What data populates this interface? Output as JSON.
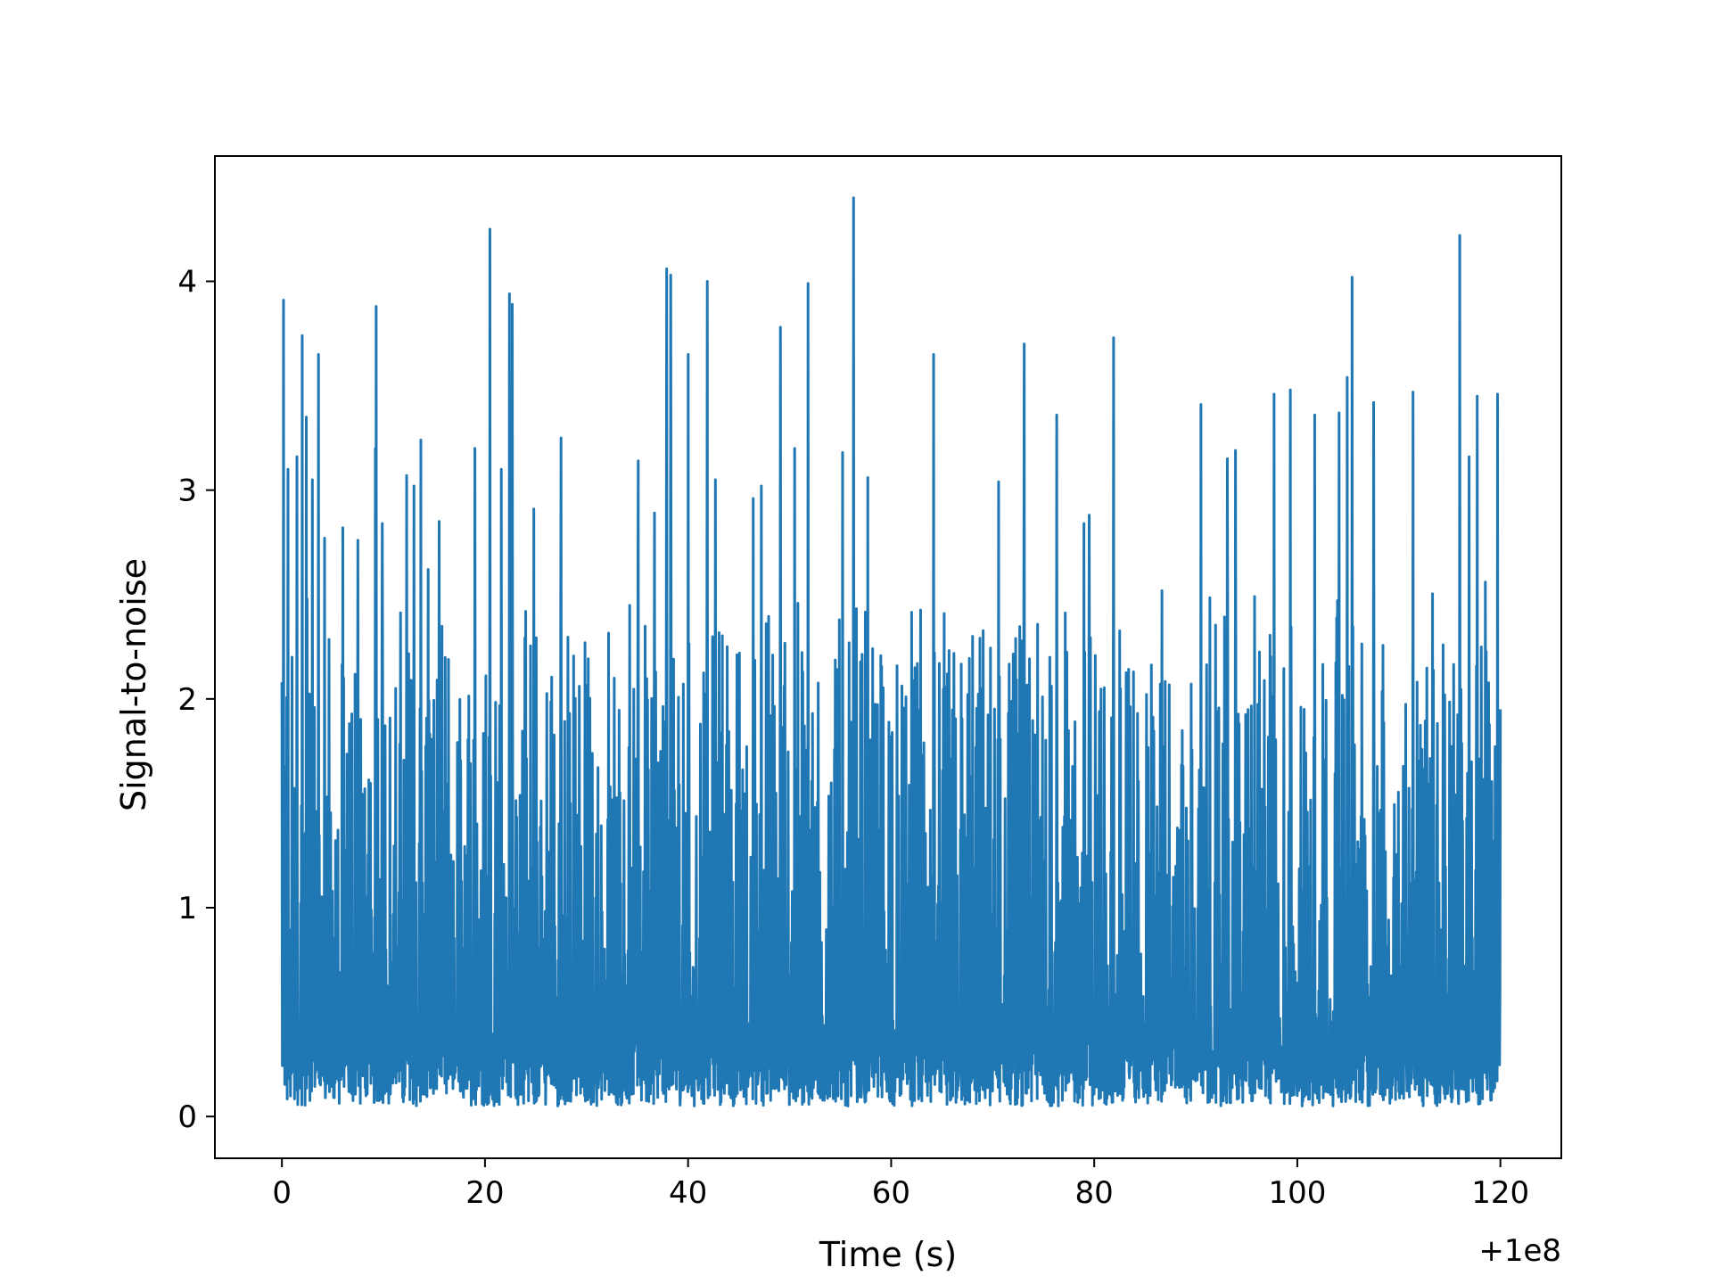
{
  "chart_data": {
    "type": "line",
    "title": "",
    "xlabel": "Time (s)",
    "ylabel": "Signal-to-noise",
    "x_offset_label": "+1e8",
    "xlim": [
      -6.6,
      126
    ],
    "ylim": [
      -0.2,
      4.6
    ],
    "xticks": [
      0,
      20,
      40,
      60,
      80,
      100,
      120
    ],
    "xtick_labels": [
      "0",
      "20",
      "40",
      "60",
      "80",
      "100",
      "120"
    ],
    "yticks": [
      0,
      1,
      2,
      3,
      4
    ],
    "ytick_labels": [
      "0",
      "1",
      "2",
      "3",
      "4"
    ],
    "grid": false,
    "legend": "none",
    "series": [
      {
        "color": "#1f77b4",
        "x_range": [
          0,
          120
        ],
        "num_samples": 3000,
        "typical_range": [
          0.05,
          2.6
        ],
        "peaks": [
          {
            "x": 0.0,
            "y": 2.08
          },
          {
            "x": 0.15,
            "y": 3.91
          },
          {
            "x": 0.6,
            "y": 3.1
          },
          {
            "x": 1.0,
            "y": 2.2
          },
          {
            "x": 1.5,
            "y": 3.16
          },
          {
            "x": 2.0,
            "y": 3.74
          },
          {
            "x": 2.4,
            "y": 3.35
          },
          {
            "x": 3.0,
            "y": 3.05
          },
          {
            "x": 3.6,
            "y": 3.65
          },
          {
            "x": 4.2,
            "y": 2.77
          },
          {
            "x": 6.0,
            "y": 2.82
          },
          {
            "x": 7.5,
            "y": 2.76
          },
          {
            "x": 9.2,
            "y": 3.2
          },
          {
            "x": 9.3,
            "y": 3.88
          },
          {
            "x": 9.9,
            "y": 2.84
          },
          {
            "x": 12.3,
            "y": 3.07
          },
          {
            "x": 13.0,
            "y": 3.02
          },
          {
            "x": 13.7,
            "y": 3.24
          },
          {
            "x": 14.4,
            "y": 2.62
          },
          {
            "x": 15.5,
            "y": 2.85
          },
          {
            "x": 19.0,
            "y": 3.2
          },
          {
            "x": 20.5,
            "y": 4.25
          },
          {
            "x": 21.6,
            "y": 3.1
          },
          {
            "x": 22.4,
            "y": 3.94
          },
          {
            "x": 22.7,
            "y": 3.89
          },
          {
            "x": 24.8,
            "y": 2.91
          },
          {
            "x": 27.5,
            "y": 3.25
          },
          {
            "x": 35.1,
            "y": 3.14
          },
          {
            "x": 36.7,
            "y": 2.89
          },
          {
            "x": 37.9,
            "y": 4.06
          },
          {
            "x": 38.3,
            "y": 4.03
          },
          {
            "x": 40.0,
            "y": 3.65
          },
          {
            "x": 41.9,
            "y": 4.0
          },
          {
            "x": 42.7,
            "y": 3.05
          },
          {
            "x": 46.4,
            "y": 2.96
          },
          {
            "x": 47.2,
            "y": 3.02
          },
          {
            "x": 49.1,
            "y": 3.78
          },
          {
            "x": 50.5,
            "y": 3.2
          },
          {
            "x": 51.8,
            "y": 3.99
          },
          {
            "x": 55.2,
            "y": 3.18
          },
          {
            "x": 56.3,
            "y": 4.4
          },
          {
            "x": 57.7,
            "y": 3.06
          },
          {
            "x": 64.2,
            "y": 3.65
          },
          {
            "x": 70.6,
            "y": 3.04
          },
          {
            "x": 73.1,
            "y": 3.7
          },
          {
            "x": 76.3,
            "y": 3.36
          },
          {
            "x": 79.0,
            "y": 2.84
          },
          {
            "x": 79.5,
            "y": 2.88
          },
          {
            "x": 81.9,
            "y": 3.73
          },
          {
            "x": 90.5,
            "y": 3.41
          },
          {
            "x": 93.1,
            "y": 3.15
          },
          {
            "x": 93.9,
            "y": 3.19
          },
          {
            "x": 97.7,
            "y": 3.46
          },
          {
            "x": 99.3,
            "y": 3.48
          },
          {
            "x": 101.7,
            "y": 3.36
          },
          {
            "x": 104.1,
            "y": 3.37
          },
          {
            "x": 104.9,
            "y": 3.54
          },
          {
            "x": 105.4,
            "y": 4.02
          },
          {
            "x": 107.5,
            "y": 3.42
          },
          {
            "x": 111.4,
            "y": 3.47
          },
          {
            "x": 116.0,
            "y": 4.22
          },
          {
            "x": 116.9,
            "y": 3.16
          },
          {
            "x": 117.7,
            "y": 3.45
          },
          {
            "x": 118.5,
            "y": 2.56
          },
          {
            "x": 119.7,
            "y": 3.46
          },
          {
            "x": 120.0,
            "y": 1.95
          }
        ]
      }
    ]
  }
}
